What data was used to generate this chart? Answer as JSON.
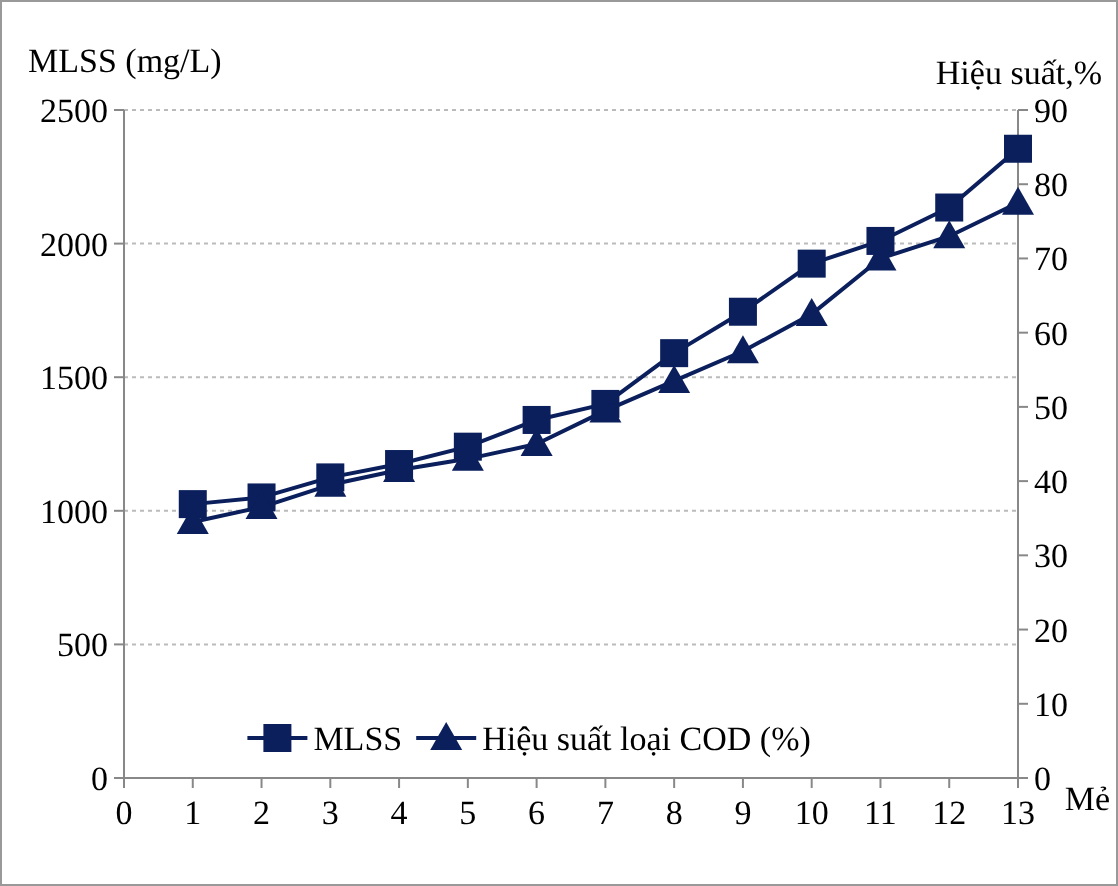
{
  "chart_data": {
    "type": "line",
    "xlabel": "Mẻ",
    "ylabel": "MLSS (mg/L)",
    "y2label": "Hiệu suất,%",
    "x": [
      1,
      2,
      3,
      4,
      5,
      6,
      7,
      8,
      9,
      10,
      11,
      12,
      13
    ],
    "xlim": [
      0,
      13
    ],
    "xticks": [
      0,
      1,
      2,
      3,
      4,
      5,
      6,
      7,
      8,
      9,
      10,
      11,
      12,
      13
    ],
    "ylim": [
      0,
      2500
    ],
    "yticks": [
      0,
      500,
      1000,
      1500,
      2000,
      2500
    ],
    "y2lim": [
      0,
      90
    ],
    "y2ticks": [
      0,
      10,
      20,
      30,
      40,
      50,
      60,
      70,
      80,
      90
    ],
    "grid": "y",
    "legend": "bottom",
    "series": [
      {
        "name": "MLSS",
        "color": "#0a1f5c",
        "marker": "square",
        "values": [
          1025,
          1050,
          1125,
          1175,
          1240,
          1340,
          1400,
          1590,
          1745,
          1925,
          2010,
          2135,
          2355
        ]
      },
      {
        "name": "Hiệu suất loại COD (%)",
        "color": "#0a1f5c",
        "marker": "triangle",
        "axis": "y2",
        "values": [
          34.5,
          36.5,
          39.5,
          41.5,
          43,
          45,
          49.5,
          53.5,
          57.5,
          62.5,
          70,
          73,
          77.5
        ]
      }
    ]
  }
}
